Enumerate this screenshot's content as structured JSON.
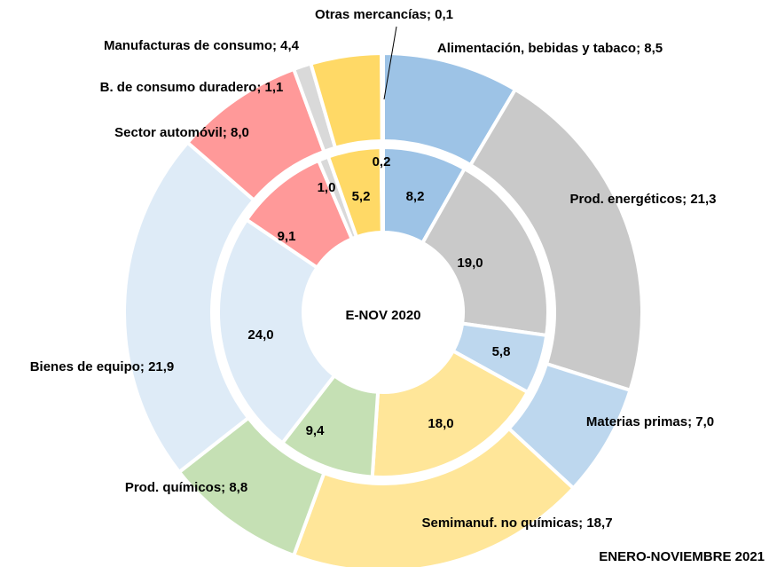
{
  "chart_data": {
    "type": "donut",
    "series": [
      {
        "name": "ENERO-NOVIEMBRE 2021",
        "values": [
          8.5,
          21.3,
          7.0,
          18.7,
          8.8,
          21.9,
          8.0,
          1.1,
          4.4,
          0.1
        ],
        "value_labels": [
          "Alimentación, bebidas y tabaco; 8,5",
          "Prod. energéticos; 21,3",
          "Materias primas; 7,0",
          "Semimanuf. no químicas; 18,7",
          "Prod. químicos; 8,8",
          "Bienes de equipo; 21,9",
          "Sector automóvil; 8,0",
          "B. de consumo duradero; 1,1",
          "Manufacturas de consumo; 4,4",
          "Otras mercancías; 0,1"
        ]
      },
      {
        "name": "E-NOV 2020",
        "values": [
          8.2,
          19.0,
          5.8,
          18.0,
          9.4,
          24.0,
          9.1,
          1.0,
          5.2,
          0.2
        ],
        "value_labels": [
          "8,2",
          "19,0",
          "5,8",
          "18,0",
          "9,4",
          "24,0",
          "9,1",
          "1,0",
          "5,2",
          "0,2"
        ]
      }
    ],
    "colors": [
      "#9dc3e6",
      "#c9c9c9",
      "#bdd7ee",
      "#ffe699",
      "#c5e0b4",
      "#deebf7",
      "#ff9999",
      "#d9d9d9",
      "#ffd966",
      "#fbe5d6"
    ]
  }
}
